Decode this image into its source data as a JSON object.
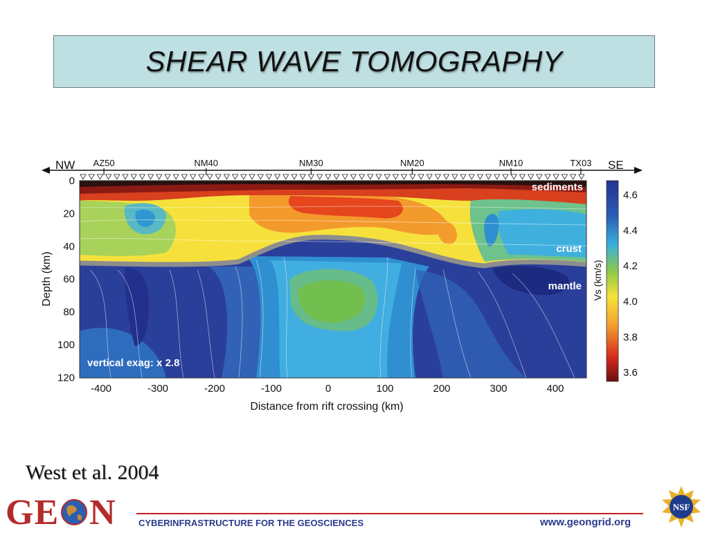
{
  "slide": {
    "title": "SHEAR WAVE TOMOGRAPHY",
    "citation": "West et al. 2004"
  },
  "figure": {
    "direction_left": "NW",
    "direction_right": "SE",
    "stations": [
      "AZ50",
      "NM40",
      "NM30",
      "NM20",
      "NM10",
      "TX03"
    ],
    "station_x_km": [
      -395,
      -215,
      -30,
      148,
      322,
      445
    ],
    "layer_labels": [
      "sediments",
      "crust",
      "mantle"
    ],
    "annotation": "vertical exag: x 2.8",
    "ylabel": "Depth (km)",
    "xlabel": "Distance from rift crossing (km)",
    "y_ticks": [
      "0",
      "20",
      "40",
      "60",
      "80",
      "100",
      "120"
    ],
    "x_ticks": [
      "-400",
      "-300",
      "-200",
      "-100",
      "0",
      "100",
      "200",
      "300",
      "400"
    ],
    "colorbar_label": "Vs (km/s)",
    "colorbar_ticks": [
      "4.6",
      "4.4",
      "4.2",
      "4.0",
      "3.8",
      "3.6"
    ],
    "colors": {
      "sediments": "#2a1010",
      "low_vs": "#c8281e",
      "mid_vs": "#f5e03a",
      "crust_green": "#7cc04a",
      "moho": "#8e8e8e",
      "mantle_light": "#3aa4dc",
      "mantle_dark": "#2a3f9a"
    }
  },
  "footer": {
    "logo_left": "GE",
    "logo_right": "N",
    "tagline": "CYBERINFRASTRUCTURE FOR THE GEOSCIENCES",
    "url": "www.geongrid.org",
    "nsf_text": "NSF"
  }
}
